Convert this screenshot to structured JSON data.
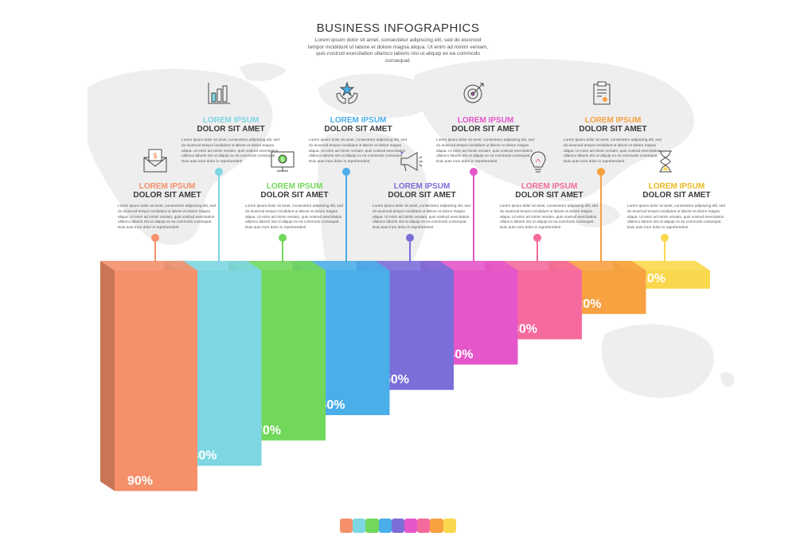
{
  "header": {
    "title": "BUSINESS INFOGRAPHICS",
    "subtitle": "Lorem ipsum dolor sit amet, consectetur adipiscing elit, sed do eiusmod tempor incididunt ut labore et dolore magna aliqua. Ut enim ad minim veniam, quis nostrud exercitation ullamco laboris nisi ut aliquip ex ea commodo consequat."
  },
  "steps": [
    {
      "label": "LOREM IPSUM",
      "heading": "DOLOR SIT AMET",
      "percent_label": "90%",
      "value": 90,
      "color": "#f5906a",
      "icon": "money-envelope-icon",
      "body": "Lorem ipsum dolor sit amet, consectetur adipiscing elit, sed do eiusmod tempor incididunt ut labore et dolore magna aliqua. Ut enim ad minim veniam, quis nostrud exercitation ullamco laboris nisi ut aliquip ex ea commodo consequat. Duis aute irure dolor in reprehenderit"
    },
    {
      "label": "LOREM IPSUM",
      "heading": "DOLOR SIT AMET",
      "percent_label": "80%",
      "value": 80,
      "color": "#7dd6e1",
      "icon": "bar-chart-icon",
      "body": "Lorem ipsum dolor sit amet, consectetur adipiscing elit, sed do eiusmod tempor incididunt ut labore et dolore magna aliqua. Ut enim ad minim veniam, quis nostrud exercitation ullamco laboris nisi ut aliquip ex ea commodo consequat. Duis aute irure dolor in reprehenderit"
    },
    {
      "label": "LOREM IPSUM",
      "heading": "DOLOR SIT AMET",
      "percent_label": "70%",
      "value": 70,
      "color": "#72d85c",
      "icon": "monitor-money-icon",
      "body": "Lorem ipsum dolor sit amet, consectetur adipiscing elit, sed do eiusmod tempor incididunt ut labore et dolore magna aliqua. Ut enim ad minim veniam, quis nostrud exercitation ullamco laboris nisi ut aliquip ex ea commodo consequat. Duis aute irure dolor in reprehenderit"
    },
    {
      "label": "LOREM IPSUM",
      "heading": "DOLOR SIT AMET",
      "percent_label": "60%",
      "value": 60,
      "color": "#4aaee8",
      "icon": "hands-star-icon",
      "body": "Lorem ipsum dolor sit amet, consectetur adipiscing elit, sed do eiusmod tempor incididunt ut labore et dolore magna aliqua. Ut enim ad minim veniam, quis nostrud exercitation ullamco laboris nisi ut aliquip ex ea commodo consequat. Duis aute irure dolor in reprehenderit"
    },
    {
      "label": "LOREM IPSUM",
      "heading": "DOLOR SIT AMET",
      "percent_label": "50%",
      "value": 50,
      "color": "#7b6ed9",
      "icon": "megaphone-icon",
      "body": "Lorem ipsum dolor sit amet, consectetur adipiscing elit, sed do eiusmod tempor incididunt ut labore et dolore magna aliqua. Ut enim ad minim veniam, quis nostrud exercitation ullamco laboris nisi ut aliquip ex ea commodo consequat. Duis aute irure dolor in reprehenderit"
    },
    {
      "label": "LOREM IPSUM",
      "heading": "DOLOR SIT AMET",
      "percent_label": "40%",
      "value": 40,
      "color": "#e456c9",
      "icon": "target-icon",
      "body": "Lorem ipsum dolor sit amet, consectetur adipiscing elit, sed do eiusmod tempor incididunt ut labore et dolore magna aliqua. Ut enim ad minim veniam, quis nostrud exercitation ullamco laboris nisi ut aliquip ex ea commodo consequat. Duis aute irure dolor in reprehenderit"
    },
    {
      "label": "LOREM IPSUM",
      "heading": "DOLOR SIT AMET",
      "percent_label": "30%",
      "value": 30,
      "color": "#f56a9c",
      "icon": "lightbulb-icon",
      "body": "Lorem ipsum dolor sit amet, consectetur adipiscing elit, sed do eiusmod tempor incididunt ut labore et dolore magna aliqua. Ut enim ad minim veniam, quis nostrud exercitation ullamco laboris nisi ut aliquip ex ea commodo consequat. Duis aute irure dolor in reprehenderit"
    },
    {
      "label": "LOREM IPSUM",
      "heading": "DOLOR SIT AMET",
      "percent_label": "20%",
      "value": 20,
      "color": "#f7a141",
      "icon": "clipboard-icon",
      "body": "Lorem ipsum dolor sit amet, consectetur adipiscing elit, sed do eiusmod tempor incididunt ut labore et dolore magna aliqua. Ut enim ad minim veniam, quis nostrud exercitation ullamco laboris nisi ut aliquip ex ea commodo consequat. Duis aute irure dolor in reprehenderit"
    },
    {
      "label": "LOREM IPSUM",
      "heading": "DOLOR SIT AMET",
      "percent_label": "10%",
      "value": 10,
      "color": "#f9d84e",
      "icon": "hourglass-icon",
      "body": "Lorem ipsum dolor sit amet, consectetur adipiscing elit, sed do eiusmod tempor incididunt ut labore et dolore magna aliqua. Ut enim ad minim veniam, quis nostrud exercitation ullamco laboris nisi ut aliquip ex ea commodo consequat. Duis aute irure dolor in reprehenderit"
    }
  ],
  "palette": [
    "#f5906a",
    "#7dd6e1",
    "#72d85c",
    "#4aaee8",
    "#7b6ed9",
    "#e456c9",
    "#f56a9c",
    "#f7a141",
    "#f9d84e"
  ]
}
